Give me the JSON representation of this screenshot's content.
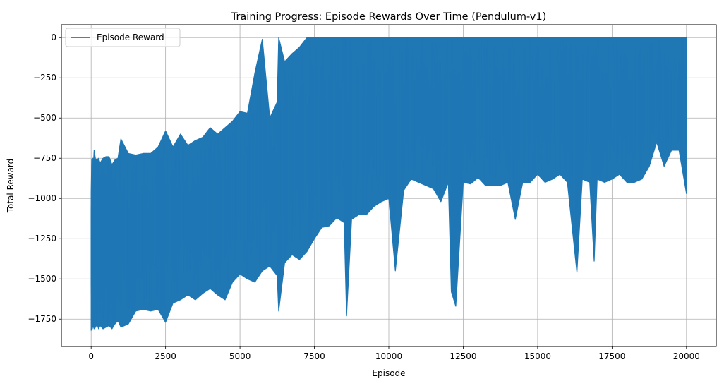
{
  "chart_data": {
    "type": "line",
    "title": "Training Progress: Episode Rewards Over Time (Pendulum-v1)",
    "xlabel": "Episode",
    "ylabel": "Total Reward",
    "xlim": [
      -1000,
      21000
    ],
    "ylim": [
      -1920,
      80
    ],
    "x_ticks": [
      0,
      2500,
      5000,
      7500,
      10000,
      12500,
      15000,
      17500,
      20000
    ],
    "x_tick_labels": [
      "0",
      "2500",
      "5000",
      "7500",
      "10000",
      "12500",
      "15000",
      "17500",
      "20000"
    ],
    "y_ticks": [
      0,
      -250,
      -500,
      -750,
      -1000,
      -1250,
      -1500,
      -1750
    ],
    "y_tick_labels": [
      "0",
      "−250",
      "−500",
      "−750",
      "−1000",
      "−1250",
      "−1500",
      "−1750"
    ],
    "grid": true,
    "legend": "top-left",
    "series": [
      {
        "name": "Episode Reward",
        "color": "#1f77b4",
        "x": [
          0,
          20,
          40,
          60,
          80,
          100,
          150,
          200,
          250,
          300,
          400,
          500,
          600,
          700,
          800,
          900,
          1000,
          1250,
          1500,
          1750,
          2000,
          2250,
          2500,
          2750,
          3000,
          3250,
          3500,
          3750,
          4000,
          4250,
          4500,
          4750,
          5000,
          5250,
          5500,
          5750,
          6000,
          6250,
          6300,
          6500,
          6750,
          7000,
          7250,
          7500,
          7750,
          8000,
          8250,
          8500,
          8580,
          8750,
          9000,
          9250,
          9500,
          9750,
          10000,
          10220,
          10500,
          10750,
          11000,
          11250,
          11500,
          11750,
          12000,
          12100,
          12250,
          12500,
          12750,
          13000,
          13250,
          13500,
          13750,
          14000,
          14250,
          14500,
          14750,
          15000,
          15250,
          15500,
          15750,
          16000,
          16320,
          16500,
          16750,
          16900,
          17000,
          17250,
          17500,
          17750,
          18000,
          18250,
          18500,
          18750,
          19000,
          19250,
          19500,
          19750,
          20000
        ],
        "min": [
          -1820,
          -1800,
          -1810,
          -1790,
          -1800,
          -1810,
          -1800,
          -1780,
          -1810,
          -1790,
          -1810,
          -1800,
          -1790,
          -1810,
          -1780,
          -1760,
          -1800,
          -1780,
          -1700,
          -1690,
          -1700,
          -1690,
          -1770,
          -1650,
          -1630,
          -1600,
          -1630,
          -1590,
          -1560,
          -1600,
          -1630,
          -1520,
          -1470,
          -1500,
          -1520,
          -1450,
          -1420,
          -1480,
          -1700,
          -1400,
          -1350,
          -1380,
          -1330,
          -1250,
          -1180,
          -1170,
          -1120,
          -1150,
          -1730,
          -1130,
          -1100,
          -1100,
          -1050,
          -1020,
          -1000,
          -1450,
          -950,
          -880,
          -900,
          -920,
          -940,
          -1020,
          -900,
          -1580,
          -1670,
          -900,
          -910,
          -870,
          -920,
          -920,
          -920,
          -900,
          -1130,
          -900,
          -900,
          -850,
          -900,
          -880,
          -850,
          -900,
          -1460,
          -880,
          -900,
          -1390,
          -880,
          -900,
          -880,
          -850,
          -900,
          -900,
          -880,
          -800,
          -650,
          -800,
          -700,
          -700,
          -970
        ],
        "max": [
          -960,
          -760,
          -780,
          -750,
          -770,
          -700,
          -760,
          -760,
          -750,
          -780,
          -750,
          -740,
          -740,
          -790,
          -760,
          -750,
          -630,
          -720,
          -730,
          -720,
          -720,
          -680,
          -580,
          -680,
          -600,
          -670,
          -640,
          -620,
          -560,
          -600,
          -560,
          -520,
          -460,
          -470,
          -220,
          -10,
          -500,
          -400,
          0,
          -150,
          -100,
          -60,
          0,
          0,
          0,
          0,
          0,
          0,
          0,
          0,
          0,
          0,
          0,
          0,
          0,
          0,
          0,
          0,
          0,
          0,
          0,
          0,
          0,
          0,
          0,
          0,
          0,
          0,
          0,
          0,
          0,
          0,
          0,
          0,
          0,
          0,
          0,
          0,
          0,
          0,
          0,
          0,
          0,
          0,
          0,
          0,
          0,
          0,
          0,
          0,
          0,
          0,
          0,
          0,
          0,
          0,
          0
        ]
      }
    ]
  }
}
